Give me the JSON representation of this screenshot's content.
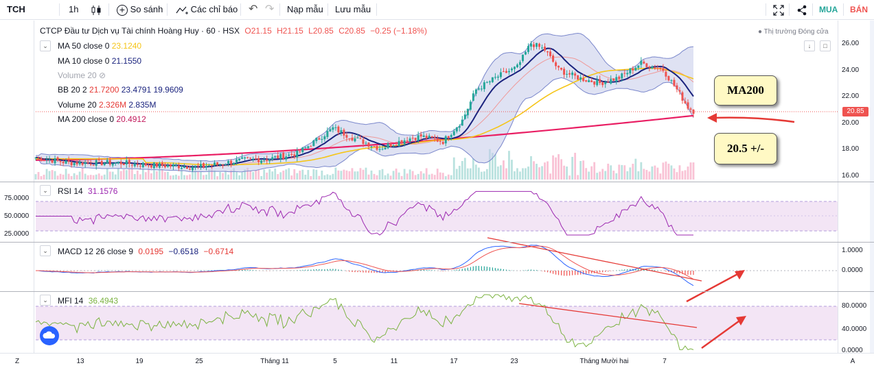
{
  "toolbar": {
    "symbol": "TCH",
    "interval": "1h",
    "compare": "So sánh",
    "indicators": "Các chỉ báo",
    "templates": "Nạp mẫu",
    "save": "Lưu mẫu",
    "buy": "MUA",
    "sell": "BÁN"
  },
  "main_pane": {
    "title": "CTCP Đầu tư Dịch vụ Tài chính Hoàng Huy · 60 · HSX",
    "ohlc": {
      "o": "O21.15",
      "h": "H21.15",
      "l": "L20.85",
      "c": "C20.85",
      "chg": "−0.25 (−1.18%)"
    },
    "market_status": "Thị trường Đóng cửa",
    "indicators": [
      {
        "label": "MA 50 close 0",
        "values": [
          "23.1240"
        ],
        "colors": [
          "#f5c518"
        ]
      },
      {
        "label": "MA 10 close 0",
        "values": [
          "21.1550"
        ],
        "colors": [
          "#1a237e"
        ]
      },
      {
        "label": "Volume 20",
        "values": [],
        "colors": []
      },
      {
        "label": "BB 20 2",
        "values": [
          "21.7200",
          "23.4791",
          "19.9609"
        ],
        "colors": [
          "#e53935",
          "#1a237e",
          "#1a237e"
        ]
      },
      {
        "label": "Volume 20",
        "values": [
          "2.326M",
          "2.835M"
        ],
        "colors": [
          "#e53935",
          "#1a237e"
        ]
      },
      {
        "label": "MA 200 close 0",
        "values": [
          "20.4912"
        ],
        "colors": [
          "#c2185b"
        ]
      }
    ],
    "price_ticks": [
      "26.00",
      "24.00",
      "22.00",
      "20.00",
      "18.00",
      "16.00"
    ],
    "last_price": "20.85"
  },
  "annotations": {
    "ma200_box": "MA200",
    "level_box": "20.5 +/-"
  },
  "rsi_pane": {
    "label": "RSI 14",
    "value": "31.1576",
    "ticks": [
      "75.0000",
      "50.0000",
      "25.0000"
    ]
  },
  "macd_pane": {
    "label": "MACD 12 26 close 9",
    "values": [
      "0.0195",
      "−0.6518",
      "−0.6714"
    ],
    "ticks": [
      "1.0000",
      "0.0000"
    ]
  },
  "mfi_pane": {
    "label": "MFI 14",
    "value": "36.4943",
    "ticks": [
      "80.0000",
      "40.0000",
      "0.0000"
    ]
  },
  "time_axis": [
    "13",
    "19",
    "25",
    "Tháng 11",
    "5",
    "11",
    "17",
    "23",
    "Tháng Mười hai",
    "7"
  ],
  "axis_corner": {
    "left": "Z",
    "right": "A"
  },
  "colors": {
    "up": "#26a69a",
    "down": "#ef5350",
    "ma50": "#f5c518",
    "ma10": "#1a237e",
    "ma200": "#e91e63",
    "bb_fill": "#c5cae9",
    "rsi": "#9c27b0",
    "mfi": "#7cb342",
    "arrow": "#e53935"
  }
}
